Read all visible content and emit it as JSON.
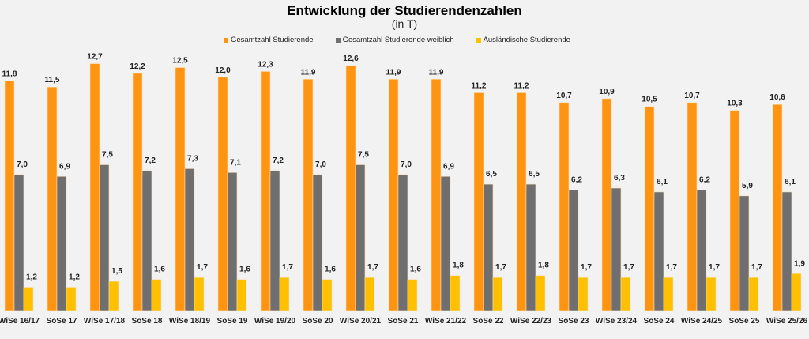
{
  "chart_data": {
    "type": "bar",
    "title": "Entwicklung der Studierendenzahlen",
    "subtitle": "(in T)",
    "legend_position": "top",
    "grid": false,
    "ylim": [
      0,
      13
    ],
    "categories": [
      "WiSe 16/17",
      "SoSe 17",
      "WiSe 17/18",
      "SoSe 18",
      "WiSe 18/19",
      "SoSe 19",
      "WiSe 19/20",
      "SoSe 20",
      "WiSe 20/21",
      "SoSe 21",
      "WiSe 21/22",
      "SoSe 22",
      "WiSe 22/23",
      "SoSe 23",
      "WiSe 23/24",
      "SoSe 24",
      "WiSe 24/25",
      "SoSe 25",
      "WiSe 25/26"
    ],
    "series": [
      {
        "name": "Gesamtzahl Studierende",
        "color": "#FF9412",
        "values": [
          11.8,
          11.5,
          12.7,
          12.2,
          12.5,
          12.0,
          12.3,
          11.9,
          12.6,
          11.9,
          11.9,
          11.2,
          11.2,
          10.7,
          10.9,
          10.5,
          10.7,
          10.3,
          10.6
        ]
      },
      {
        "name": "Gesamtzahl Studierende weiblich",
        "color": "#6F6F6F",
        "values": [
          7.0,
          6.9,
          7.5,
          7.2,
          7.3,
          7.1,
          7.2,
          7.0,
          7.5,
          7.0,
          6.9,
          6.5,
          6.5,
          6.2,
          6.3,
          6.1,
          6.2,
          5.9,
          6.1
        ]
      },
      {
        "name": "Ausländische Studierende",
        "color": "#FFC000",
        "values": [
          1.2,
          1.2,
          1.5,
          1.6,
          1.7,
          1.6,
          1.7,
          1.6,
          1.7,
          1.6,
          1.8,
          1.7,
          1.8,
          1.7,
          1.7,
          1.7,
          1.7,
          1.7,
          1.9
        ]
      }
    ]
  }
}
